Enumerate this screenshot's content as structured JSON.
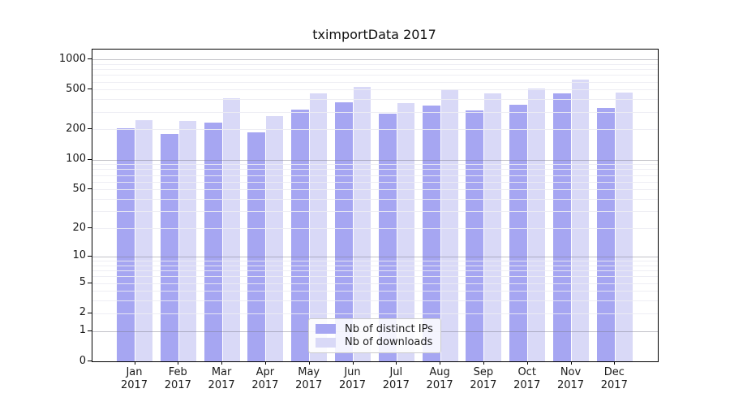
{
  "figure": {
    "title": "tximportData 2017"
  },
  "chart_data": {
    "type": "bar",
    "title": "tximportData 2017",
    "categories": [
      {
        "month": "Jan",
        "year": "2017"
      },
      {
        "month": "Feb",
        "year": "2017"
      },
      {
        "month": "Mar",
        "year": "2017"
      },
      {
        "month": "Apr",
        "year": "2017"
      },
      {
        "month": "May",
        "year": "2017"
      },
      {
        "month": "Jun",
        "year": "2017"
      },
      {
        "month": "Jul",
        "year": "2017"
      },
      {
        "month": "Aug",
        "year": "2017"
      },
      {
        "month": "Sep",
        "year": "2017"
      },
      {
        "month": "Oct",
        "year": "2017"
      },
      {
        "month": "Nov",
        "year": "2017"
      },
      {
        "month": "Dec",
        "year": "2017"
      }
    ],
    "series": [
      {
        "name": "Nb of distinct IPs",
        "color": "#a6a6f2",
        "values": [
          207,
          181,
          236,
          186,
          315,
          370,
          287,
          344,
          312,
          352,
          455,
          325
        ]
      },
      {
        "name": "Nb of downloads",
        "color": "#d9d9f7",
        "values": [
          248,
          243,
          410,
          273,
          460,
          528,
          366,
          503,
          455,
          512,
          630,
          471
        ]
      }
    ],
    "y_axis": {
      "scale": "log1p",
      "ticks": [
        1000,
        500,
        200,
        100,
        50,
        20,
        10,
        5,
        2,
        1,
        0
      ],
      "max": 1250,
      "major_gridlines": [
        1,
        10,
        100,
        1000
      ],
      "minor_gridlines": [
        2,
        3,
        4,
        5,
        6,
        7,
        8,
        9,
        20,
        30,
        40,
        50,
        60,
        70,
        80,
        90,
        200,
        300,
        400,
        500,
        600,
        700,
        800,
        900
      ]
    },
    "xlabel": "",
    "ylabel": "",
    "grid": true,
    "legend_position": "lower-center"
  }
}
